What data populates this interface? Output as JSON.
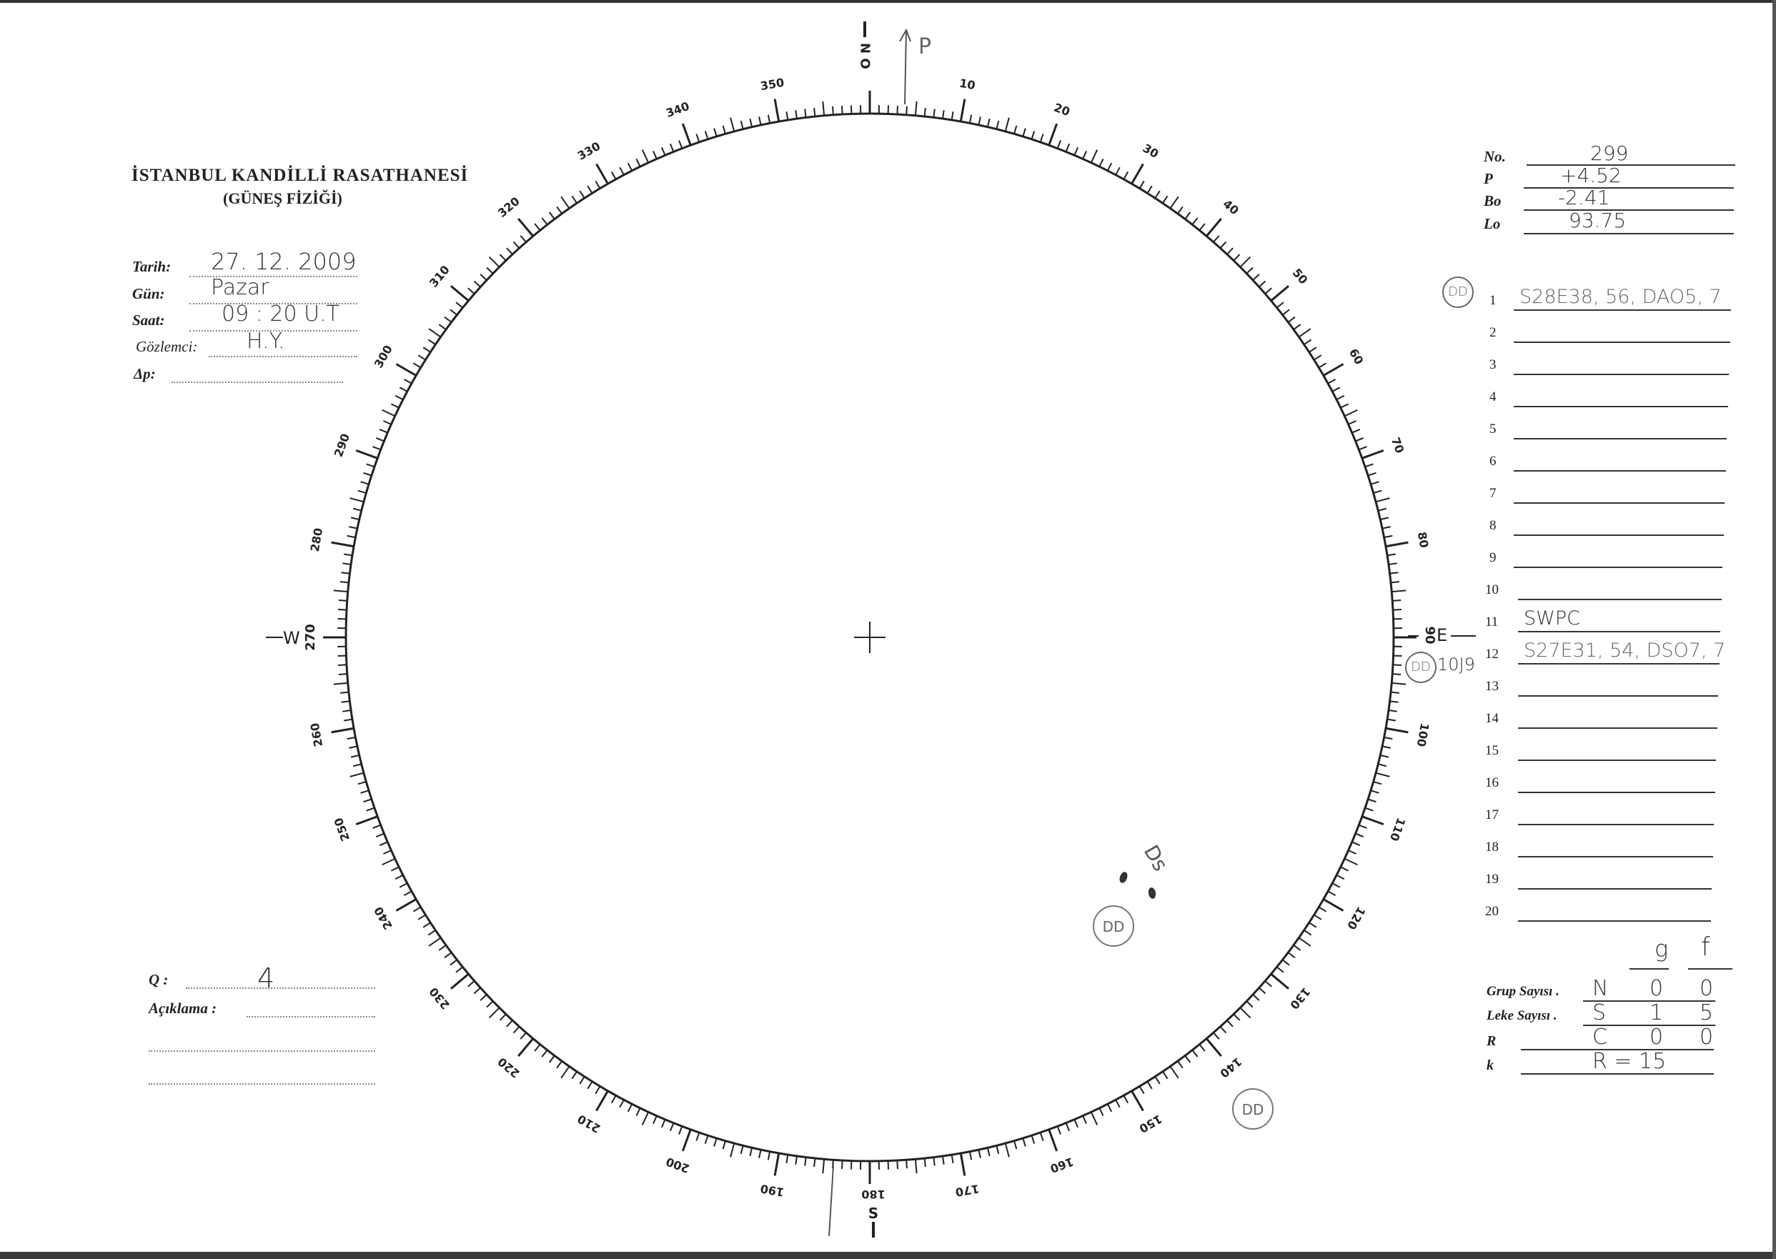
{
  "header": {
    "title": "İSTANBUL KANDİLLİ RASATHANESİ",
    "subtitle": "(GÜNEŞ FİZİĞİ)"
  },
  "observation": {
    "date_label": "Tarih:",
    "date_value": "27. 12. 2009",
    "day_label": "Gün:",
    "day_value": "Pazar",
    "time_label": "Saat:",
    "time_value": "09 : 20  U.T",
    "observer_label": "Gözlemci:",
    "observer_value": "H.Y.",
    "delta_p_label": "Δp:",
    "delta_p_value": ""
  },
  "parameters": [
    {
      "label": "No.",
      "value": "299"
    },
    {
      "label": "P",
      "value": "+4.52"
    },
    {
      "label": "Bo",
      "value": "-2.41"
    },
    {
      "label": "Lo",
      "value": "93.75"
    }
  ],
  "groups": [
    {
      "n": "1",
      "value": "S28E38, 56, DAO5, 7",
      "mark": "DD"
    },
    {
      "n": "2",
      "value": ""
    },
    {
      "n": "3",
      "value": ""
    },
    {
      "n": "4",
      "value": ""
    },
    {
      "n": "5",
      "value": ""
    },
    {
      "n": "6",
      "value": ""
    },
    {
      "n": "7",
      "value": ""
    },
    {
      "n": "8",
      "value": ""
    },
    {
      "n": "9",
      "value": ""
    },
    {
      "n": "10",
      "value": ""
    },
    {
      "n": "11",
      "value": "SWPC"
    },
    {
      "n": "12",
      "value": "S27E31, 54, DSO7, 7",
      "mark": "DD",
      "note": "10J9"
    },
    {
      "n": "13",
      "value": ""
    },
    {
      "n": "14",
      "value": ""
    },
    {
      "n": "15",
      "value": ""
    },
    {
      "n": "16",
      "value": ""
    },
    {
      "n": "17",
      "value": ""
    },
    {
      "n": "18",
      "value": ""
    },
    {
      "n": "19",
      "value": ""
    },
    {
      "n": "20",
      "value": ""
    }
  ],
  "counts": {
    "col_g": "g",
    "col_f": "f",
    "rows": [
      {
        "label": "Grup Sayısı .",
        "hem": "N",
        "g": "0",
        "f": "0"
      },
      {
        "label": "Leke Sayısı .",
        "hem": "S",
        "g": "1",
        "f": "5"
      },
      {
        "label": "R",
        "hem": "C",
        "g": "0",
        "f": "0"
      },
      {
        "label": "k",
        "hem": "R = 15",
        "g": "",
        "f": ""
      }
    ]
  },
  "quality": {
    "q_label": "Q :",
    "q_value": "4",
    "remark_label": "Açıklama :",
    "remark_value": ""
  },
  "disk": {
    "degree_labels": [
      10,
      20,
      30,
      40,
      50,
      60,
      70,
      80,
      100,
      110,
      120,
      130,
      140,
      150,
      160,
      170,
      190,
      200,
      210,
      220,
      230,
      240,
      250,
      260,
      280,
      290,
      300,
      310,
      320,
      330,
      340,
      350
    ],
    "north": "N O",
    "east_deg": "90",
    "east": "E",
    "south_deg": "180",
    "south": "S",
    "west": "W",
    "west_deg": "270",
    "p_axis_label": "P",
    "p_angle_deg": 4.52,
    "spot_label": "Ds",
    "circle_mark": "DD"
  }
}
